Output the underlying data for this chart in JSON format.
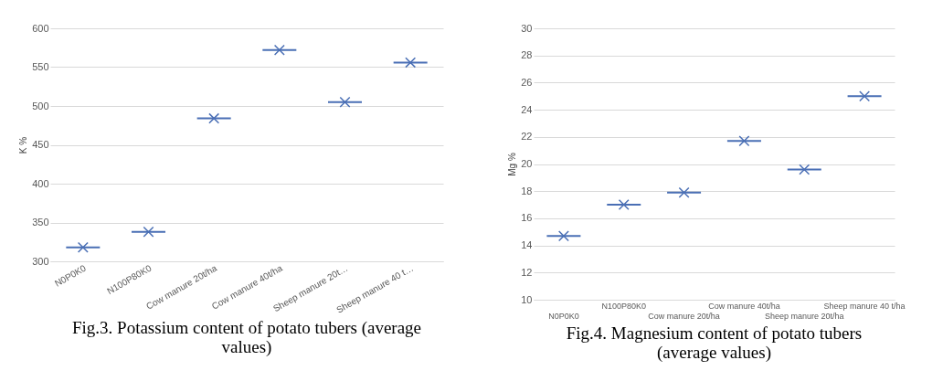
{
  "chart_data": [
    {
      "type": "scatter",
      "title": "Fig.3. Potassium content of potato tubers (average values)",
      "ylabel": "K %",
      "categories": [
        "N0P0K0",
        "N100P80K0",
        "Cow manure 20t/ha",
        "Cow manure 40t/ha",
        "Sheep manure 20t…",
        "Sheep manure 40 t…"
      ],
      "series": [
        {
          "color": "#4a6fb5",
          "values": [
            318,
            338,
            484,
            572,
            505,
            556
          ]
        }
      ],
      "ylim": [
        300,
        600
      ],
      "yticks": [
        300,
        350,
        400,
        450,
        500,
        550,
        600
      ],
      "grid": "y",
      "marker": "cross"
    },
    {
      "type": "scatter",
      "title": "Fig.4. Magnesium content of potato tubers (average values)",
      "ylabel": "Mg %",
      "categories": [
        "N0P0K0",
        "N100P80K0",
        "Cow manure 20t/ha",
        "Cow manure 40t/ha",
        "Sheep manure 20t/ha",
        "Sheep manure 40 t/ha"
      ],
      "series": [
        {
          "color": "#4a6fb5",
          "values": [
            14.7,
            17.0,
            17.9,
            21.7,
            19.6,
            25.0
          ]
        }
      ],
      "ylim": [
        10,
        30
      ],
      "yticks": [
        10,
        12,
        14,
        16,
        18,
        20,
        22,
        24,
        26,
        28,
        30
      ],
      "grid": "y",
      "marker": "cross"
    }
  ]
}
